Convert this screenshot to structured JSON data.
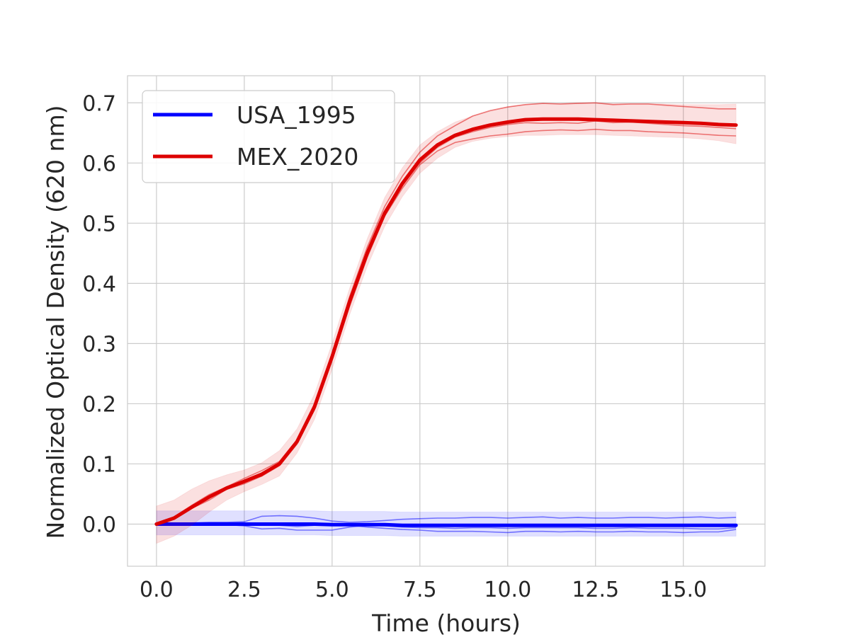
{
  "chart_data": {
    "type": "line",
    "title": "",
    "xlabel": "Time (hours)",
    "ylabel": "Normalized Optical Density (620 nm)",
    "xlim": [
      -0.825,
      17.325
    ],
    "ylim": [
      -0.07,
      0.745
    ],
    "grid": true,
    "legend_position": "top-left",
    "xticks": [
      0.0,
      2.5,
      5.0,
      7.5,
      10.0,
      12.5,
      15.0
    ],
    "xtick_labels": [
      "0.0",
      "2.5",
      "5.0",
      "7.5",
      "10.0",
      "12.5",
      "15.0"
    ],
    "yticks": [
      0.0,
      0.1,
      0.2,
      0.3,
      0.4,
      0.5,
      0.6,
      0.7
    ],
    "ytick_labels": [
      "0.0",
      "0.1",
      "0.2",
      "0.3",
      "0.4",
      "0.5",
      "0.6",
      "0.7"
    ],
    "x": [
      0.0,
      0.5,
      1.0,
      1.5,
      2.0,
      2.5,
      3.0,
      3.5,
      4.0,
      4.5,
      5.0,
      5.5,
      6.0,
      6.5,
      7.0,
      7.5,
      8.0,
      8.5,
      9.0,
      9.5,
      10.0,
      10.5,
      11.0,
      11.5,
      12.0,
      12.5,
      13.0,
      13.5,
      14.0,
      14.5,
      15.0,
      15.5,
      16.0,
      16.5
    ],
    "series": [
      {
        "name": "USA_1995",
        "color": "#0000ff",
        "values": [
          0.0,
          0.0,
          0.0,
          0.0,
          0.0,
          0.0,
          0.0,
          0.0,
          0.0,
          0.0,
          -0.001,
          -0.001,
          -0.001,
          -0.001,
          -0.002,
          -0.002,
          -0.002,
          -0.002,
          -0.002,
          -0.002,
          -0.002,
          -0.002,
          -0.002,
          -0.002,
          -0.002,
          -0.002,
          -0.002,
          -0.002,
          -0.002,
          -0.002,
          -0.002,
          -0.002,
          -0.002,
          -0.002
        ],
        "band_lower": [
          -0.018,
          -0.018,
          -0.018,
          -0.018,
          -0.018,
          -0.018,
          -0.018,
          -0.018,
          -0.018,
          -0.018,
          -0.019,
          -0.019,
          -0.019,
          -0.019,
          -0.02,
          -0.02,
          -0.02,
          -0.02,
          -0.02,
          -0.02,
          -0.02,
          -0.02,
          -0.02,
          -0.02,
          -0.02,
          -0.02,
          -0.02,
          -0.02,
          -0.02,
          -0.02,
          -0.02,
          -0.02,
          -0.02,
          -0.02
        ],
        "band_upper": [
          0.022,
          0.022,
          0.022,
          0.022,
          0.022,
          0.022,
          0.022,
          0.022,
          0.022,
          0.022,
          0.021,
          0.021,
          0.021,
          0.021,
          0.02,
          0.02,
          0.02,
          0.02,
          0.02,
          0.02,
          0.02,
          0.02,
          0.02,
          0.02,
          0.02,
          0.02,
          0.02,
          0.02,
          0.02,
          0.02,
          0.02,
          0.02,
          0.02,
          0.02
        ],
        "replicates": [
          [
            0.0,
            0.0,
            0.002,
            0.003,
            0.003,
            0.004,
            0.013,
            0.014,
            0.013,
            0.01,
            0.005,
            0.003,
            0.004,
            0.006,
            0.008,
            0.009,
            0.01,
            0.01,
            0.011,
            0.011,
            0.01,
            0.011,
            0.012,
            0.01,
            0.011,
            0.01,
            0.01,
            0.011,
            0.011,
            0.01,
            0.011,
            0.012,
            0.01,
            0.011
          ],
          [
            0.0,
            -0.001,
            -0.001,
            -0.001,
            -0.001,
            -0.003,
            -0.008,
            -0.007,
            -0.01,
            -0.01,
            -0.01,
            -0.005,
            -0.002,
            -0.003,
            -0.005,
            -0.006,
            -0.006,
            -0.007,
            -0.006,
            -0.006,
            -0.007,
            -0.006,
            -0.006,
            -0.006,
            -0.006,
            -0.007,
            -0.007,
            -0.006,
            -0.007,
            -0.007,
            -0.007,
            -0.008,
            -0.008,
            -0.006
          ],
          [
            0.0,
            0.0,
            -0.001,
            -0.001,
            -0.002,
            -0.001,
            0.0,
            -0.002,
            -0.004,
            -0.002,
            0.001,
            -0.002,
            -0.005,
            -0.007,
            -0.009,
            -0.01,
            -0.012,
            -0.012,
            -0.012,
            -0.013,
            -0.014,
            -0.012,
            -0.012,
            -0.013,
            -0.012,
            -0.013,
            -0.013,
            -0.012,
            -0.013,
            -0.013,
            -0.014,
            -0.013,
            -0.013,
            -0.009
          ]
        ]
      },
      {
        "name": "MEX_2020",
        "color": "#dd0000",
        "values": [
          0.0,
          0.01,
          0.028,
          0.045,
          0.06,
          0.071,
          0.083,
          0.1,
          0.137,
          0.195,
          0.278,
          0.37,
          0.45,
          0.517,
          0.566,
          0.605,
          0.63,
          0.646,
          0.656,
          0.663,
          0.668,
          0.672,
          0.673,
          0.673,
          0.673,
          0.672,
          0.671,
          0.67,
          0.669,
          0.668,
          0.667,
          0.666,
          0.664,
          0.663
        ],
        "band_lower": [
          -0.032,
          -0.02,
          -0.002,
          0.02,
          0.04,
          0.054,
          0.066,
          0.08,
          0.118,
          0.174,
          0.257,
          0.348,
          0.428,
          0.495,
          0.544,
          0.583,
          0.608,
          0.626,
          0.636,
          0.641,
          0.644,
          0.646,
          0.646,
          0.647,
          0.647,
          0.647,
          0.646,
          0.645,
          0.644,
          0.643,
          0.642,
          0.64,
          0.637,
          0.632
        ],
        "band_upper": [
          0.03,
          0.04,
          0.058,
          0.072,
          0.082,
          0.09,
          0.102,
          0.122,
          0.158,
          0.216,
          0.3,
          0.392,
          0.474,
          0.543,
          0.592,
          0.63,
          0.652,
          0.668,
          0.678,
          0.686,
          0.693,
          0.697,
          0.699,
          0.699,
          0.7,
          0.7,
          0.699,
          0.699,
          0.699,
          0.698,
          0.697,
          0.697,
          0.697,
          0.698
        ],
        "replicates": [
          [
            0.0,
            0.012,
            0.031,
            0.049,
            0.062,
            0.076,
            0.089,
            0.104,
            0.14,
            0.2,
            0.283,
            0.378,
            0.46,
            0.528,
            0.578,
            0.618,
            0.645,
            0.662,
            0.678,
            0.687,
            0.693,
            0.697,
            0.699,
            0.698,
            0.699,
            0.7,
            0.697,
            0.698,
            0.698,
            0.696,
            0.694,
            0.692,
            0.69,
            0.69
          ],
          [
            0.0,
            0.01,
            0.027,
            0.046,
            0.059,
            0.07,
            0.08,
            0.097,
            0.133,
            0.19,
            0.272,
            0.362,
            0.443,
            0.512,
            0.562,
            0.6,
            0.626,
            0.643,
            0.652,
            0.659,
            0.664,
            0.667,
            0.666,
            0.667,
            0.666,
            0.67,
            0.667,
            0.668,
            0.666,
            0.664,
            0.662,
            0.661,
            0.659,
            0.657
          ],
          [
            0.0,
            0.008,
            0.026,
            0.04,
            0.058,
            0.067,
            0.08,
            0.099,
            0.138,
            0.195,
            0.28,
            0.37,
            0.448,
            0.512,
            0.558,
            0.597,
            0.62,
            0.634,
            0.64,
            0.645,
            0.648,
            0.652,
            0.654,
            0.655,
            0.654,
            0.656,
            0.654,
            0.654,
            0.652,
            0.651,
            0.65,
            0.648,
            0.646,
            0.645
          ]
        ]
      }
    ]
  }
}
